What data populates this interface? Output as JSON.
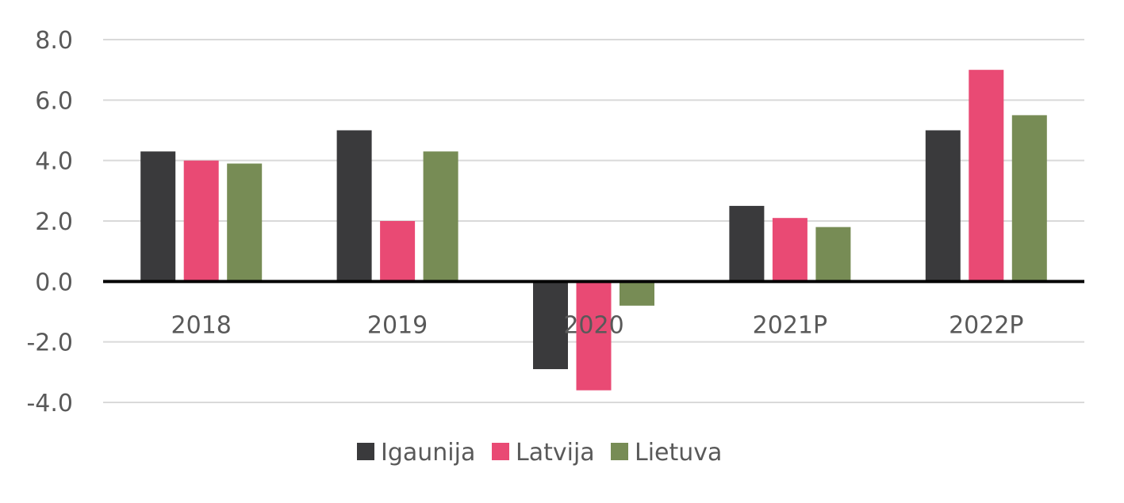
{
  "chart_data": {
    "type": "bar",
    "categories": [
      "2018",
      "2019",
      "2020",
      "2021P",
      "2022P"
    ],
    "series": [
      {
        "name": "Igaunija",
        "color": "#3a3a3c",
        "values": [
          4.3,
          5.0,
          -2.9,
          2.5,
          5.0
        ]
      },
      {
        "name": "Latvija",
        "color": "#e94a74",
        "values": [
          4.0,
          2.0,
          -3.6,
          2.1,
          7.0
        ]
      },
      {
        "name": "Lietuva",
        "color": "#778c55",
        "values": [
          3.9,
          4.3,
          -0.8,
          1.8,
          5.5
        ]
      }
    ],
    "ylim": [
      -4.0,
      8.0
    ],
    "yticks": [
      "8.0",
      "6.0",
      "4.0",
      "2.0",
      "0.0",
      "-2.0",
      "-4.0"
    ],
    "ytick_values": [
      8,
      6,
      4,
      2,
      0,
      -2,
      -4
    ],
    "grid": true,
    "legend_position": "bottom"
  }
}
